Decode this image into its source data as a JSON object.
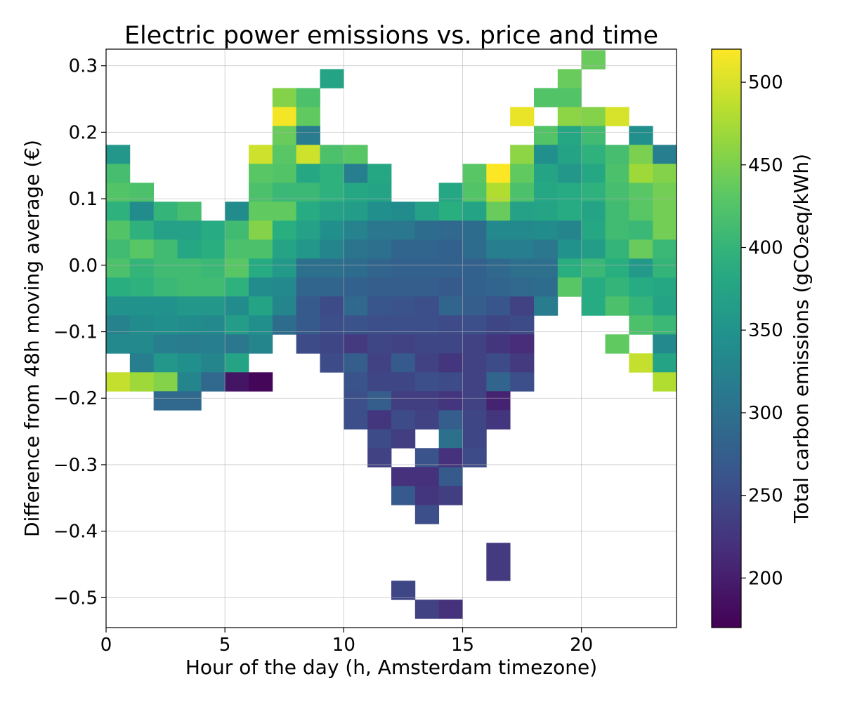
{
  "chart_data": {
    "type": "heatmap",
    "title": "Electric power emissions vs. price and time",
    "xlabel": "Hour of the day (h, Amsterdam timezone)",
    "ylabel": "Difference from 48h moving average (€)",
    "colorbar_label": "Total carbon emissions (gCO₂eq/kWh)",
    "colormap": "viridis",
    "xlim": [
      0,
      24
    ],
    "ylim": [
      -0.545,
      0.325
    ],
    "x_ticks": [
      0,
      5,
      10,
      15,
      20
    ],
    "x_tick_labels": [
      "0",
      "5",
      "10",
      "15",
      "20"
    ],
    "y_ticks": [
      0.3,
      0.2,
      0.1,
      0.0,
      -0.1,
      -0.2,
      -0.3,
      -0.4,
      -0.5
    ],
    "y_tick_labels": [
      "0.3",
      "0.2",
      "0.1",
      "0.0",
      "−0.1",
      "−0.2",
      "−0.3",
      "−0.4",
      "−0.5"
    ],
    "color_range": [
      170,
      520
    ],
    "colorbar_ticks": [
      200,
      250,
      300,
      350,
      400,
      450,
      500
    ],
    "colorbar_tick_labels": [
      "200",
      "250",
      "300",
      "350",
      "400",
      "450",
      "500"
    ],
    "grid": true,
    "bin_edges_y": [
      0.3235,
      0.295,
      0.2665,
      0.238,
      0.2095,
      0.181,
      0.1525,
      0.124,
      0.0955,
      0.067,
      0.0385,
      0.01,
      -0.0185,
      -0.047,
      -0.0755,
      -0.104,
      -0.1325,
      -0.161,
      -0.1895,
      -0.218,
      -0.2465,
      -0.275,
      -0.3035,
      -0.332,
      -0.3605,
      -0.389,
      -0.4175,
      -0.446,
      -0.4745,
      -0.503,
      -0.5315
    ],
    "cells": [
      [
        20,
        0,
        440
      ],
      [
        9,
        1,
        375
      ],
      [
        19,
        1,
        440
      ],
      [
        7,
        2,
        455
      ],
      [
        8,
        2,
        420
      ],
      [
        18,
        2,
        425
      ],
      [
        19,
        2,
        425
      ],
      [
        7,
        3,
        515
      ],
      [
        8,
        3,
        435
      ],
      [
        17,
        3,
        510
      ],
      [
        19,
        3,
        460
      ],
      [
        20,
        3,
        455
      ],
      [
        21,
        3,
        500
      ],
      [
        7,
        4,
        440
      ],
      [
        8,
        4,
        315
      ],
      [
        18,
        4,
        425
      ],
      [
        19,
        4,
        380
      ],
      [
        20,
        4,
        410
      ],
      [
        22,
        4,
        345
      ],
      [
        0,
        5,
        355
      ],
      [
        6,
        5,
        495
      ],
      [
        7,
        5,
        430
      ],
      [
        8,
        5,
        495
      ],
      [
        9,
        5,
        420
      ],
      [
        10,
        5,
        430
      ],
      [
        17,
        5,
        460
      ],
      [
        18,
        5,
        345
      ],
      [
        19,
        5,
        375
      ],
      [
        20,
        5,
        395
      ],
      [
        21,
        5,
        415
      ],
      [
        22,
        5,
        450
      ],
      [
        23,
        5,
        320
      ],
      [
        0,
        6,
        415
      ],
      [
        6,
        6,
        430
      ],
      [
        7,
        6,
        425
      ],
      [
        8,
        6,
        380
      ],
      [
        9,
        6,
        395
      ],
      [
        10,
        6,
        320
      ],
      [
        11,
        6,
        380
      ],
      [
        15,
        6,
        430
      ],
      [
        16,
        6,
        520
      ],
      [
        17,
        6,
        435
      ],
      [
        18,
        6,
        375
      ],
      [
        19,
        6,
        355
      ],
      [
        20,
        6,
        380
      ],
      [
        21,
        6,
        420
      ],
      [
        22,
        6,
        470
      ],
      [
        23,
        6,
        455
      ],
      [
        0,
        7,
        425
      ],
      [
        1,
        7,
        420
      ],
      [
        6,
        7,
        420
      ],
      [
        7,
        7,
        405
      ],
      [
        8,
        7,
        405
      ],
      [
        9,
        7,
        395
      ],
      [
        10,
        7,
        380
      ],
      [
        11,
        7,
        375
      ],
      [
        14,
        7,
        380
      ],
      [
        15,
        7,
        425
      ],
      [
        16,
        7,
        480
      ],
      [
        17,
        7,
        420
      ],
      [
        18,
        7,
        380
      ],
      [
        19,
        7,
        385
      ],
      [
        20,
        7,
        395
      ],
      [
        21,
        7,
        415
      ],
      [
        22,
        7,
        430
      ],
      [
        23,
        7,
        445
      ],
      [
        0,
        8,
        395
      ],
      [
        1,
        8,
        340
      ],
      [
        2,
        8,
        400
      ],
      [
        3,
        8,
        415
      ],
      [
        5,
        8,
        340
      ],
      [
        6,
        8,
        435
      ],
      [
        7,
        8,
        435
      ],
      [
        8,
        8,
        385
      ],
      [
        9,
        8,
        370
      ],
      [
        10,
        8,
        365
      ],
      [
        11,
        8,
        345
      ],
      [
        12,
        8,
        340
      ],
      [
        13,
        8,
        370
      ],
      [
        14,
        8,
        390
      ],
      [
        15,
        8,
        375
      ],
      [
        16,
        8,
        440
      ],
      [
        17,
        8,
        370
      ],
      [
        18,
        8,
        375
      ],
      [
        19,
        8,
        385
      ],
      [
        20,
        8,
        375
      ],
      [
        21,
        8,
        410
      ],
      [
        22,
        8,
        430
      ],
      [
        23,
        8,
        445
      ],
      [
        0,
        9,
        425
      ],
      [
        1,
        9,
        395
      ],
      [
        2,
        9,
        370
      ],
      [
        3,
        9,
        370
      ],
      [
        4,
        9,
        385
      ],
      [
        5,
        9,
        410
      ],
      [
        6,
        9,
        455
      ],
      [
        7,
        9,
        390
      ],
      [
        8,
        9,
        370
      ],
      [
        9,
        9,
        345
      ],
      [
        10,
        9,
        325
      ],
      [
        11,
        9,
        310
      ],
      [
        12,
        9,
        310
      ],
      [
        13,
        9,
        295
      ],
      [
        14,
        9,
        290
      ],
      [
        15,
        9,
        295
      ],
      [
        16,
        9,
        335
      ],
      [
        17,
        9,
        335
      ],
      [
        18,
        9,
        340
      ],
      [
        19,
        9,
        330
      ],
      [
        20,
        9,
        380
      ],
      [
        21,
        9,
        410
      ],
      [
        22,
        9,
        405
      ],
      [
        23,
        9,
        445
      ],
      [
        0,
        10,
        410
      ],
      [
        1,
        10,
        430
      ],
      [
        2,
        10,
        410
      ],
      [
        3,
        10,
        380
      ],
      [
        4,
        10,
        390
      ],
      [
        5,
        10,
        420
      ],
      [
        6,
        10,
        420
      ],
      [
        7,
        10,
        375
      ],
      [
        8,
        10,
        355
      ],
      [
        9,
        10,
        330
      ],
      [
        10,
        10,
        305
      ],
      [
        11,
        10,
        300
      ],
      [
        12,
        10,
        285
      ],
      [
        13,
        10,
        285
      ],
      [
        14,
        10,
        280
      ],
      [
        15,
        10,
        295
      ],
      [
        16,
        10,
        320
      ],
      [
        17,
        10,
        320
      ],
      [
        18,
        10,
        310
      ],
      [
        19,
        10,
        350
      ],
      [
        20,
        10,
        365
      ],
      [
        21,
        10,
        400
      ],
      [
        22,
        10,
        440
      ],
      [
        23,
        10,
        405
      ],
      [
        0,
        11,
        420
      ],
      [
        1,
        11,
        400
      ],
      [
        2,
        11,
        410
      ],
      [
        3,
        11,
        410
      ],
      [
        4,
        11,
        405
      ],
      [
        5,
        11,
        430
      ],
      [
        6,
        11,
        385
      ],
      [
        7,
        11,
        360
      ],
      [
        8,
        11,
        300
      ],
      [
        9,
        11,
        300
      ],
      [
        10,
        11,
        295
      ],
      [
        11,
        11,
        285
      ],
      [
        12,
        11,
        280
      ],
      [
        13,
        11,
        280
      ],
      [
        14,
        11,
        280
      ],
      [
        15,
        11,
        280
      ],
      [
        16,
        11,
        290
      ],
      [
        17,
        11,
        300
      ],
      [
        18,
        11,
        300
      ],
      [
        19,
        11,
        390
      ],
      [
        20,
        11,
        405
      ],
      [
        21,
        11,
        390
      ],
      [
        22,
        11,
        360
      ],
      [
        23,
        11,
        400
      ],
      [
        0,
        12,
        390
      ],
      [
        1,
        12,
        395
      ],
      [
        2,
        12,
        405
      ],
      [
        3,
        12,
        410
      ],
      [
        4,
        12,
        410
      ],
      [
        5,
        12,
        395
      ],
      [
        6,
        12,
        340
      ],
      [
        7,
        12,
        335
      ],
      [
        8,
        12,
        285
      ],
      [
        9,
        12,
        285
      ],
      [
        10,
        12,
        280
      ],
      [
        11,
        12,
        275
      ],
      [
        12,
        12,
        275
      ],
      [
        13,
        12,
        275
      ],
      [
        14,
        12,
        270
      ],
      [
        15,
        12,
        280
      ],
      [
        16,
        12,
        285
      ],
      [
        17,
        12,
        290
      ],
      [
        18,
        12,
        295
      ],
      [
        19,
        12,
        430
      ],
      [
        20,
        12,
        385
      ],
      [
        21,
        12,
        400
      ],
      [
        22,
        12,
        385
      ],
      [
        23,
        12,
        380
      ],
      [
        0,
        13,
        350
      ],
      [
        1,
        13,
        350
      ],
      [
        2,
        13,
        350
      ],
      [
        3,
        13,
        355
      ],
      [
        4,
        13,
        355
      ],
      [
        5,
        13,
        340
      ],
      [
        6,
        13,
        375
      ],
      [
        7,
        13,
        330
      ],
      [
        8,
        13,
        270
      ],
      [
        9,
        13,
        250
      ],
      [
        10,
        13,
        290
      ],
      [
        11,
        13,
        265
      ],
      [
        12,
        13,
        260
      ],
      [
        13,
        13,
        255
      ],
      [
        14,
        13,
        285
      ],
      [
        15,
        13,
        275
      ],
      [
        16,
        13,
        265
      ],
      [
        17,
        13,
        240
      ],
      [
        18,
        13,
        315
      ],
      [
        20,
        13,
        385
      ],
      [
        21,
        13,
        420
      ],
      [
        22,
        13,
        400
      ],
      [
        23,
        13,
        375
      ],
      [
        0,
        14,
        325
      ],
      [
        1,
        14,
        340
      ],
      [
        2,
        14,
        345
      ],
      [
        3,
        14,
        340
      ],
      [
        4,
        14,
        335
      ],
      [
        5,
        14,
        365
      ],
      [
        6,
        14,
        345
      ],
      [
        7,
        14,
        295
      ],
      [
        8,
        14,
        270
      ],
      [
        9,
        14,
        255
      ],
      [
        10,
        14,
        260
      ],
      [
        11,
        14,
        255
      ],
      [
        12,
        14,
        255
      ],
      [
        13,
        14,
        255
      ],
      [
        14,
        14,
        250
      ],
      [
        15,
        14,
        255
      ],
      [
        16,
        14,
        245
      ],
      [
        17,
        14,
        250
      ],
      [
        22,
        14,
        420
      ],
      [
        23,
        14,
        405
      ],
      [
        0,
        15,
        335
      ],
      [
        1,
        15,
        335
      ],
      [
        2,
        15,
        320
      ],
      [
        3,
        15,
        315
      ],
      [
        4,
        15,
        320
      ],
      [
        5,
        15,
        310
      ],
      [
        6,
        15,
        330
      ],
      [
        8,
        15,
        250
      ],
      [
        9,
        15,
        245
      ],
      [
        10,
        15,
        230
      ],
      [
        11,
        15,
        245
      ],
      [
        12,
        15,
        240
      ],
      [
        13,
        15,
        245
      ],
      [
        14,
        15,
        245
      ],
      [
        15,
        15,
        240
      ],
      [
        16,
        15,
        225
      ],
      [
        17,
        15,
        215
      ],
      [
        21,
        15,
        435
      ],
      [
        23,
        15,
        335
      ],
      [
        1,
        16,
        320
      ],
      [
        2,
        16,
        355
      ],
      [
        3,
        16,
        345
      ],
      [
        4,
        16,
        330
      ],
      [
        5,
        16,
        375
      ],
      [
        9,
        16,
        250
      ],
      [
        10,
        16,
        275
      ],
      [
        11,
        16,
        240
      ],
      [
        12,
        16,
        270
      ],
      [
        13,
        16,
        240
      ],
      [
        14,
        16,
        225
      ],
      [
        15,
        16,
        240
      ],
      [
        16,
        16,
        250
      ],
      [
        17,
        16,
        230
      ],
      [
        22,
        16,
        490
      ],
      [
        23,
        16,
        375
      ],
      [
        0,
        17,
        490
      ],
      [
        1,
        17,
        470
      ],
      [
        2,
        17,
        455
      ],
      [
        3,
        17,
        330
      ],
      [
        4,
        17,
        290
      ],
      [
        5,
        17,
        190
      ],
      [
        6,
        17,
        175
      ],
      [
        10,
        17,
        260
      ],
      [
        11,
        17,
        245
      ],
      [
        12,
        17,
        245
      ],
      [
        13,
        17,
        255
      ],
      [
        14,
        17,
        250
      ],
      [
        15,
        17,
        240
      ],
      [
        16,
        17,
        285
      ],
      [
        17,
        17,
        255
      ],
      [
        23,
        17,
        480
      ],
      [
        2,
        18,
        290
      ],
      [
        3,
        18,
        290
      ],
      [
        10,
        18,
        255
      ],
      [
        11,
        18,
        275
      ],
      [
        12,
        18,
        235
      ],
      [
        13,
        18,
        235
      ],
      [
        14,
        18,
        225
      ],
      [
        15,
        18,
        240
      ],
      [
        16,
        18,
        205
      ],
      [
        10,
        19,
        255
      ],
      [
        11,
        19,
        225
      ],
      [
        12,
        19,
        250
      ],
      [
        13,
        19,
        240
      ],
      [
        14,
        19,
        275
      ],
      [
        15,
        19,
        245
      ],
      [
        16,
        19,
        225
      ],
      [
        11,
        20,
        250
      ],
      [
        12,
        20,
        235
      ],
      [
        14,
        20,
        300
      ],
      [
        15,
        20,
        245
      ],
      [
        11,
        21,
        240
      ],
      [
        13,
        21,
        260
      ],
      [
        14,
        21,
        220
      ],
      [
        15,
        21,
        250
      ],
      [
        12,
        22,
        220
      ],
      [
        13,
        22,
        220
      ],
      [
        14,
        22,
        270
      ],
      [
        12,
        23,
        270
      ],
      [
        13,
        23,
        225
      ],
      [
        14,
        23,
        235
      ],
      [
        13,
        24,
        255
      ],
      [
        16,
        26,
        230
      ],
      [
        16,
        27,
        230
      ],
      [
        12,
        28,
        245
      ],
      [
        13,
        29,
        240
      ],
      [
        14,
        29,
        220
      ],
      [
        15,
        30,
        215
      ]
    ]
  }
}
